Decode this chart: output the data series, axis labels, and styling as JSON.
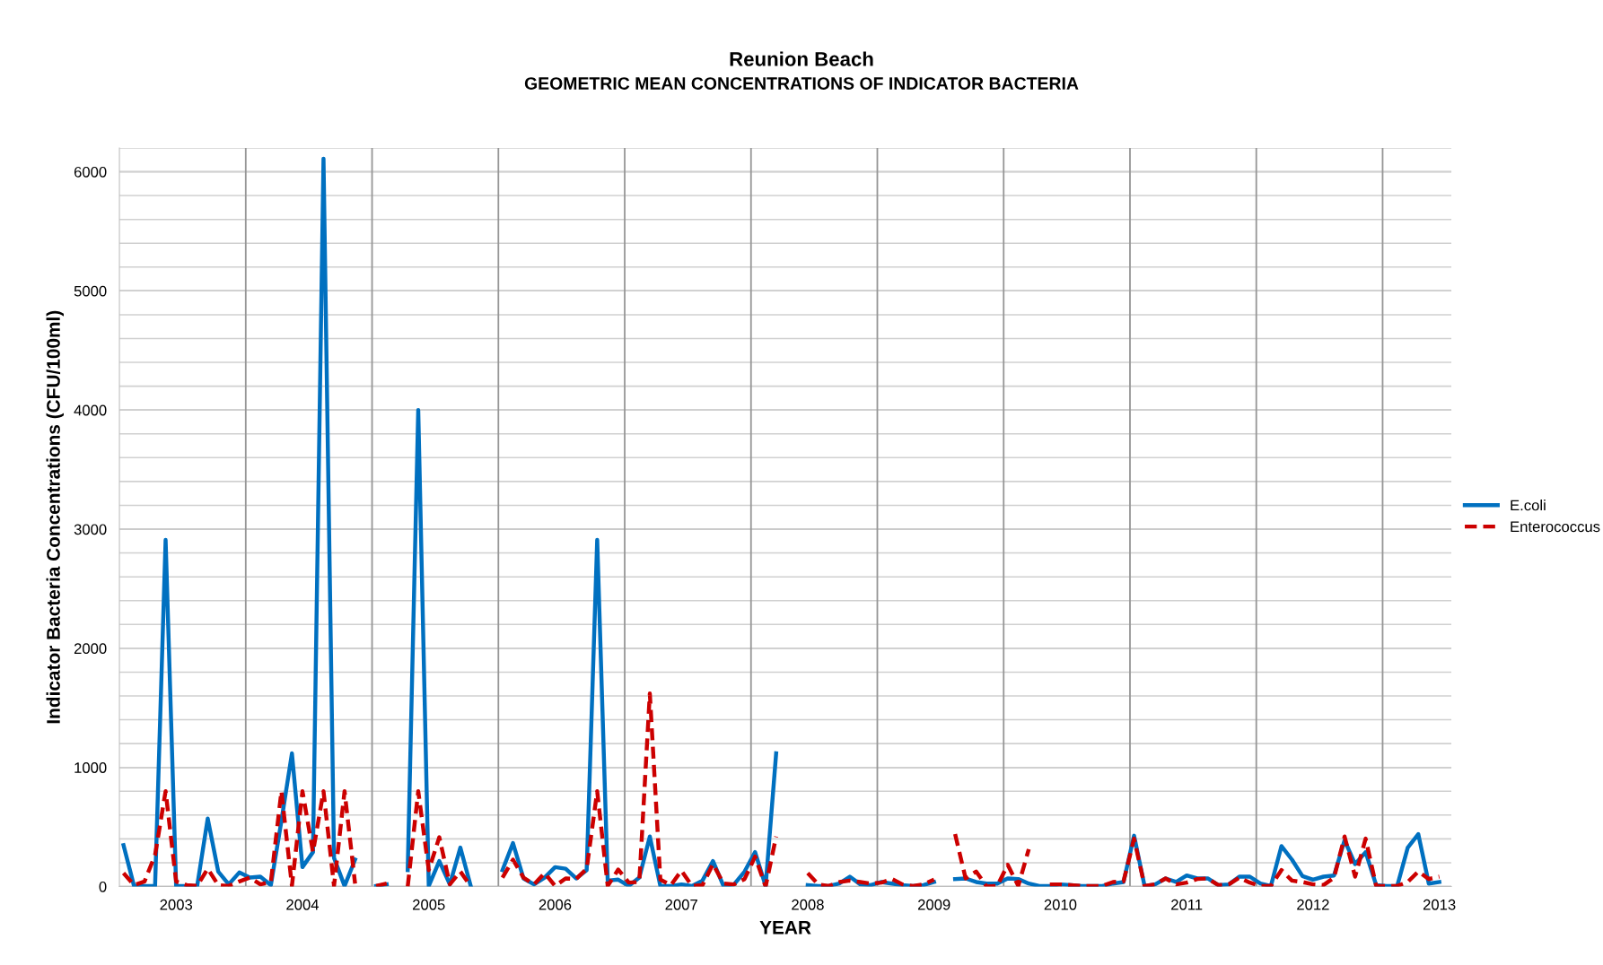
{
  "chart_data": {
    "type": "line",
    "title": "Reunion Beach",
    "subtitle": "GEOMETRIC MEAN CONCENTRATIONS OF INDICATOR BACTERIA",
    "xlabel": "YEAR",
    "ylabel": "Indicator Bacteria Concentrations (CFU/100ml)",
    "x": [
      "2002-08",
      "2002-09",
      "2002-10",
      "2002-11",
      "2002-12",
      "2003-01",
      "2003-02",
      "2003-03",
      "2003-04",
      "2003-05",
      "2003-06",
      "2003-07",
      "2003-08",
      "2003-09",
      "2003-10",
      "2003-11",
      "2003-12",
      "2004-01",
      "2004-02",
      "2004-03",
      "2004-04",
      "2004-05",
      "2004-06",
      "2004-07",
      "2004-08",
      "2004-09",
      "2004-10",
      "2004-11",
      "2004-12",
      "2005-01",
      "2005-02",
      "2005-03",
      "2005-04",
      "2005-05",
      "2005-06",
      "2005-07",
      "2005-08",
      "2005-09",
      "2005-10",
      "2005-11",
      "2005-12",
      "2006-01",
      "2006-02",
      "2006-03",
      "2006-04",
      "2006-05",
      "2006-06",
      "2006-07",
      "2006-08",
      "2006-09",
      "2006-10",
      "2006-11",
      "2006-12",
      "2007-01",
      "2007-02",
      "2007-03",
      "2007-04",
      "2007-05",
      "2007-06",
      "2007-07",
      "2007-08",
      "2007-09",
      "2007-10",
      "2007-11",
      "2007-12",
      "2008-01",
      "2008-02",
      "2008-03",
      "2008-04",
      "2008-05",
      "2008-06",
      "2008-07",
      "2008-08",
      "2008-09",
      "2008-10",
      "2008-11",
      "2008-12",
      "2009-01",
      "2009-02",
      "2009-03",
      "2009-04",
      "2009-05",
      "2009-06",
      "2009-07",
      "2009-08",
      "2009-09",
      "2009-10",
      "2009-11",
      "2009-12",
      "2010-01",
      "2010-02",
      "2010-03",
      "2010-04",
      "2010-05",
      "2010-06",
      "2010-07",
      "2010-08",
      "2010-09",
      "2010-10",
      "2010-11",
      "2010-12",
      "2011-01",
      "2011-02",
      "2011-03",
      "2011-04",
      "2011-05",
      "2011-06",
      "2011-07",
      "2011-08",
      "2011-09",
      "2011-10",
      "2011-11",
      "2011-12",
      "2012-01",
      "2012-02",
      "2012-03",
      "2012-04",
      "2012-05",
      "2012-06",
      "2012-07",
      "2012-08",
      "2012-09",
      "2012-10",
      "2012-11",
      "2012-12",
      "2013-01"
    ],
    "series": [
      {
        "name": "E.coli",
        "color": "#0070c0",
        "line_style": "solid",
        "values": [
          347,
          5,
          5,
          5,
          2910,
          5,
          5,
          5,
          570,
          126,
          18,
          118,
          75,
          83,
          12,
          550,
          1118,
          163,
          289,
          6110,
          240,
          5,
          226,
          null,
          5,
          18,
          null,
          138,
          4000,
          5,
          214,
          18,
          327,
          0,
          null,
          null,
          138,
          364,
          68,
          18,
          75,
          163,
          150,
          68,
          138,
          2910,
          50,
          58,
          5,
          75,
          420,
          5,
          5,
          18,
          5,
          50,
          214,
          5,
          18,
          126,
          289,
          5,
          1118,
          null,
          null,
          12,
          5,
          5,
          25,
          83,
          18,
          12,
          38,
          25,
          12,
          5,
          12,
          38,
          null,
          63,
          68,
          38,
          25,
          25,
          68,
          63,
          25,
          5,
          5,
          18,
          12,
          5,
          5,
          5,
          25,
          38,
          427,
          5,
          18,
          68,
          38,
          93,
          68,
          68,
          12,
          18,
          83,
          83,
          25,
          5,
          339,
          226,
          88,
          58,
          83,
          93,
          389,
          188,
          289,
          12,
          5,
          5,
          327,
          440,
          25,
          38
        ]
      },
      {
        "name": "Enterococcus",
        "color": "#cc0000",
        "line_style": "dashed",
        "values": [
          113,
          12,
          43,
          264,
          800,
          43,
          12,
          5,
          150,
          12,
          5,
          43,
          75,
          18,
          38,
          800,
          5,
          800,
          289,
          800,
          5,
          800,
          25,
          null,
          5,
          25,
          null,
          0,
          800,
          138,
          414,
          18,
          126,
          0,
          null,
          null,
          75,
          226,
          75,
          18,
          113,
          5,
          68,
          63,
          150,
          800,
          5,
          143,
          33,
          38,
          1620,
          58,
          12,
          133,
          5,
          12,
          188,
          25,
          18,
          63,
          251,
          0,
          420,
          null,
          null,
          113,
          18,
          5,
          38,
          50,
          38,
          25,
          33,
          63,
          18,
          5,
          18,
          58,
          null,
          440,
          68,
          126,
          0,
          5,
          183,
          5,
          314,
          null,
          18,
          18,
          12,
          5,
          5,
          5,
          38,
          43,
          402,
          5,
          18,
          68,
          18,
          33,
          63,
          68,
          12,
          18,
          75,
          33,
          5,
          5,
          138,
          50,
          38,
          18,
          12,
          75,
          420,
          83,
          402,
          5,
          5,
          5,
          38,
          126,
          63,
          83
        ]
      }
    ],
    "xlim": [
      "2002-07-20",
      "2013-02-05"
    ],
    "xticks": [
      "2003",
      "2004",
      "2005",
      "2006",
      "2007",
      "2008",
      "2009",
      "2010",
      "2011",
      "2012",
      "2013"
    ],
    "ylim": [
      0,
      6200
    ],
    "yticks": [
      0,
      {
        "value": 200,
        "label": null
      },
      {
        "value": 400,
        "label": null
      },
      {
        "value": 600,
        "label": null
      },
      {
        "value": 800,
        "label": null
      },
      1000,
      {
        "value": 1200,
        "label": null
      },
      {
        "value": 1400,
        "label": null
      },
      {
        "value": 1600,
        "label": null
      },
      {
        "value": 1800,
        "label": null
      },
      2000,
      {
        "value": 2200,
        "label": null
      },
      {
        "value": 2400,
        "label": null
      },
      {
        "value": 2600,
        "label": null
      },
      {
        "value": 2800,
        "label": null
      },
      3000,
      {
        "value": 3200,
        "label": null
      },
      {
        "value": 3400,
        "label": null
      },
      {
        "value": 3600,
        "label": null
      },
      {
        "value": 3800,
        "label": null
      },
      4000,
      {
        "value": 4200,
        "label": null
      },
      {
        "value": 4400,
        "label": null
      },
      {
        "value": 4600,
        "label": null
      },
      {
        "value": 4800,
        "label": null
      },
      5000,
      {
        "value": 5200,
        "label": null
      },
      {
        "value": 5400,
        "label": null
      },
      {
        "value": 5600,
        "label": null
      },
      {
        "value": 5800,
        "label": null
      },
      6000,
      {
        "value": 6200,
        "label": null
      }
    ],
    "grid": "y",
    "legend": "right",
    "marker": "none",
    "ref_lines": [
      {
        "axis": "x",
        "value": "2003-07-20",
        "color": "#969696"
      },
      {
        "axis": "x",
        "value": "2004-07-20",
        "color": "#969696"
      },
      {
        "axis": "x",
        "value": "2005-07-20",
        "color": "#969696"
      },
      {
        "axis": "x",
        "value": "2006-07-20",
        "color": "#969696"
      },
      {
        "axis": "x",
        "value": "2007-07-20",
        "color": "#969696"
      },
      {
        "axis": "x",
        "value": "2008-07-20",
        "color": "#969696"
      },
      {
        "axis": "x",
        "value": "2009-07-20",
        "color": "#969696"
      },
      {
        "axis": "x",
        "value": "2010-07-20",
        "color": "#969696"
      },
      {
        "axis": "x",
        "value": "2011-07-20",
        "color": "#969696"
      },
      {
        "axis": "x",
        "value": "2012-07-20",
        "color": "#969696"
      }
    ]
  }
}
